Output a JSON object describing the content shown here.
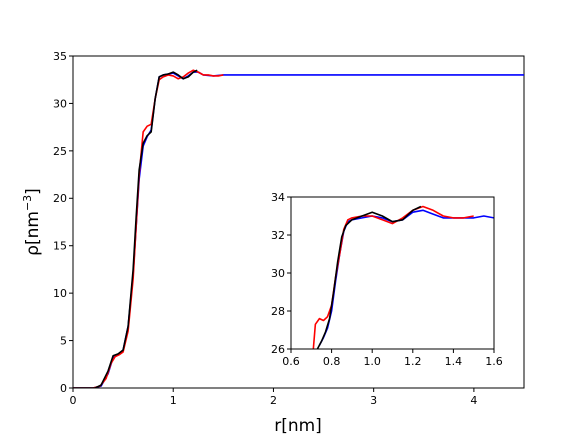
{
  "chart_data": [
    {
      "id": "main",
      "type": "line",
      "xlabel": "r[nm]",
      "ylabel_base": "ρ[nm",
      "ylabel_exp": "−3",
      "ylabel_close": "]",
      "xlim": [
        0,
        4.5
      ],
      "ylim": [
        0,
        35
      ],
      "xticks": [
        0,
        1,
        2,
        3,
        4
      ],
      "yticks": [
        0,
        5,
        10,
        15,
        20,
        25,
        30,
        35
      ],
      "grid": false,
      "series": [
        {
          "color": "#0000ff",
          "x": [
            0.0,
            0.2,
            0.28,
            0.35,
            0.4,
            0.45,
            0.5,
            0.55,
            0.6,
            0.63,
            0.66,
            0.7,
            0.74,
            0.78,
            0.82,
            0.86,
            0.9,
            0.95,
            1.0,
            1.05,
            1.1,
            1.15,
            1.2,
            1.25,
            1.3,
            1.4,
            1.5,
            2.0,
            2.5,
            3.0,
            3.5,
            4.0,
            4.5
          ],
          "y": [
            0.0,
            0.0,
            0.2,
            1.5,
            3.2,
            3.5,
            4.0,
            6.5,
            12.0,
            17.0,
            22.0,
            25.5,
            26.5,
            27.2,
            30.5,
            32.8,
            33.0,
            33.1,
            33.2,
            32.9,
            32.6,
            32.9,
            33.3,
            33.3,
            33.0,
            32.9,
            33.0,
            33.0,
            33.0,
            33.0,
            33.0,
            33.0,
            33.0
          ]
        },
        {
          "color": "#ff0000",
          "x": [
            0.0,
            0.2,
            0.27,
            0.33,
            0.38,
            0.42,
            0.46,
            0.5,
            0.55,
            0.6,
            0.63,
            0.66,
            0.7,
            0.74,
            0.78,
            0.82,
            0.86,
            0.9,
            0.95,
            1.0,
            1.05,
            1.1,
            1.15,
            1.2,
            1.25,
            1.3,
            1.35,
            1.4,
            1.45,
            1.5
          ],
          "y": [
            0.0,
            0.0,
            0.2,
            1.0,
            2.6,
            3.3,
            3.5,
            3.8,
            6.0,
            11.5,
            17.0,
            22.5,
            27.0,
            27.6,
            27.8,
            30.5,
            32.5,
            32.8,
            33.0,
            32.9,
            32.6,
            32.8,
            33.2,
            33.5,
            33.3,
            33.0,
            33.0,
            32.9,
            32.9,
            33.0
          ]
        },
        {
          "color": "#000000",
          "x": [
            0.0,
            0.22,
            0.28,
            0.35,
            0.4,
            0.45,
            0.5,
            0.55,
            0.6,
            0.63,
            0.66,
            0.7,
            0.74,
            0.78,
            0.82,
            0.86,
            0.9,
            0.95,
            1.0,
            1.05,
            1.1,
            1.15,
            1.2,
            1.24
          ],
          "y": [
            0.0,
            0.0,
            0.3,
            1.8,
            3.4,
            3.6,
            4.0,
            6.5,
            12.5,
            18.0,
            23.0,
            25.8,
            26.6,
            27.0,
            30.5,
            32.8,
            33.0,
            33.1,
            33.3,
            33.0,
            32.6,
            32.8,
            33.3,
            33.5
          ]
        }
      ]
    },
    {
      "id": "inset",
      "type": "line",
      "xlim": [
        0.6,
        1.6
      ],
      "ylim": [
        26,
        34
      ],
      "xticks": [
        0.6,
        0.8,
        1.0,
        1.2,
        1.4,
        1.6
      ],
      "xtick_labels": [
        "0.6",
        "0.8",
        "1.0",
        "1.2",
        "1.4",
        "1.6"
      ],
      "yticks": [
        26,
        28,
        30,
        32,
        34
      ],
      "grid": false,
      "series": [
        {
          "color": "#0000ff",
          "x": [
            0.74,
            0.76,
            0.78,
            0.8,
            0.82,
            0.84,
            0.86,
            0.88,
            0.9,
            0.95,
            1.0,
            1.05,
            1.1,
            1.15,
            1.2,
            1.25,
            1.3,
            1.35,
            1.4,
            1.45,
            1.5,
            1.55,
            1.6
          ],
          "y": [
            26.2,
            26.6,
            27.1,
            28.0,
            29.6,
            31.0,
            32.2,
            32.7,
            32.8,
            32.9,
            33.0,
            32.9,
            32.7,
            32.8,
            33.2,
            33.3,
            33.1,
            32.9,
            32.9,
            32.9,
            32.9,
            33.0,
            32.9
          ]
        },
        {
          "color": "#ff0000",
          "x": [
            0.71,
            0.72,
            0.74,
            0.76,
            0.78,
            0.8,
            0.82,
            0.84,
            0.86,
            0.88,
            0.9,
            0.95,
            1.0,
            1.05,
            1.1,
            1.15,
            1.2,
            1.25,
            1.3,
            1.35,
            1.4,
            1.45,
            1.5
          ],
          "y": [
            26.0,
            27.3,
            27.6,
            27.5,
            27.7,
            28.3,
            29.8,
            31.0,
            32.3,
            32.8,
            32.9,
            33.0,
            33.0,
            32.8,
            32.6,
            32.9,
            33.3,
            33.5,
            33.3,
            33.0,
            32.9,
            32.9,
            33.0
          ]
        },
        {
          "color": "#000000",
          "x": [
            0.73,
            0.75,
            0.77,
            0.79,
            0.81,
            0.83,
            0.85,
            0.87,
            0.9,
            0.95,
            1.0,
            1.05,
            1.1,
            1.15,
            1.2,
            1.24
          ],
          "y": [
            26.0,
            26.4,
            26.9,
            27.6,
            29.0,
            30.6,
            31.9,
            32.5,
            32.8,
            33.0,
            33.2,
            33.0,
            32.7,
            32.8,
            33.3,
            33.5
          ]
        }
      ]
    }
  ]
}
